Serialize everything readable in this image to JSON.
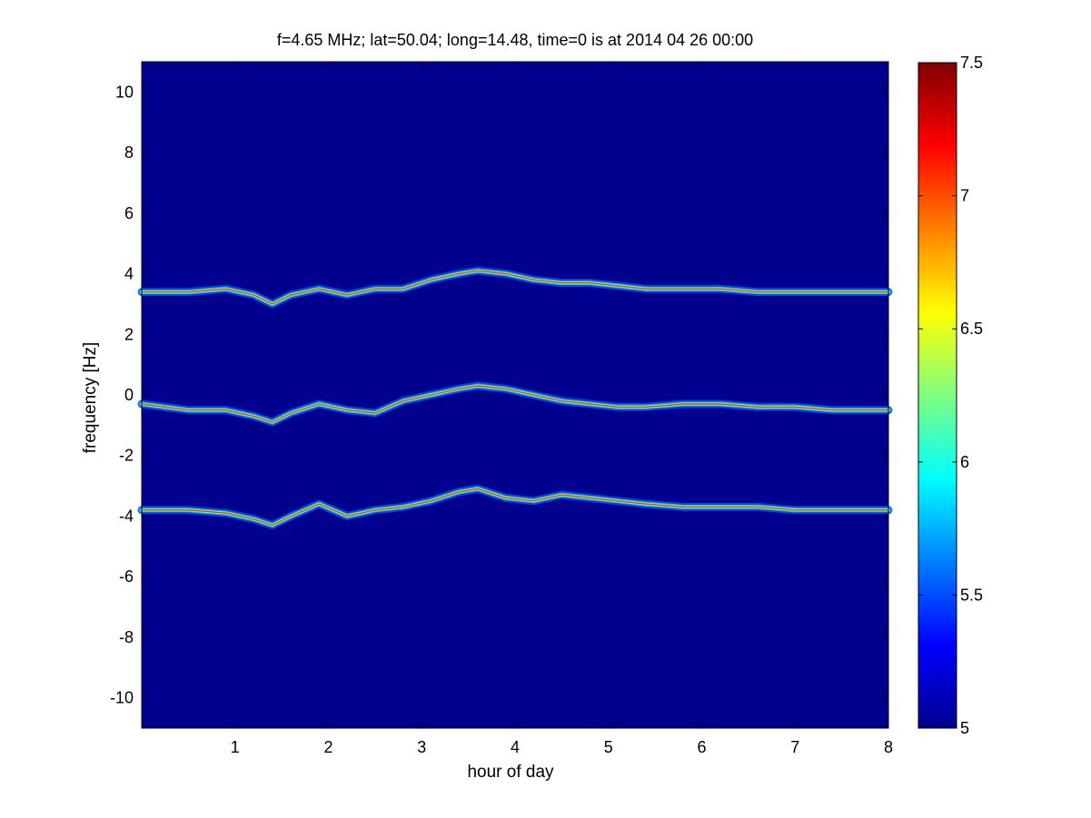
{
  "chart_data": {
    "type": "heatmap",
    "title": "f=4.65 MHz;  lat=50.04; long=14.48, time=0 is at 2014 04 26 00:00",
    "xlabel": "hour of day",
    "ylabel": "frequency [Hz]",
    "xlim": [
      0,
      8
    ],
    "ylim": [
      -11,
      11
    ],
    "x_ticks": [
      "1",
      "2",
      "3",
      "4",
      "5",
      "6",
      "7",
      "8"
    ],
    "y_ticks": [
      "10",
      "8",
      "6",
      "4",
      "2",
      "0",
      "-2",
      "-4",
      "-6",
      "-8",
      "-10"
    ],
    "colorbar": {
      "colormap": "jet",
      "clim": [
        5,
        7.5
      ],
      "ticks": [
        "7.5",
        "7",
        "6.5",
        "6",
        "5.5",
        "5"
      ]
    },
    "background_color": "#00008f",
    "series": [
      {
        "band": "upper",
        "x": [
          0.0,
          0.5,
          0.9,
          1.2,
          1.4,
          1.6,
          1.9,
          2.2,
          2.5,
          2.8,
          3.1,
          3.4,
          3.6,
          3.9,
          4.2,
          4.5,
          4.8,
          5.1,
          5.4,
          5.8,
          6.2,
          6.6,
          7.0,
          7.4,
          8.0
        ],
        "y": [
          3.4,
          3.4,
          3.5,
          3.3,
          3.0,
          3.3,
          3.5,
          3.3,
          3.5,
          3.5,
          3.8,
          4.0,
          4.1,
          4.0,
          3.8,
          3.7,
          3.7,
          3.6,
          3.5,
          3.5,
          3.5,
          3.4,
          3.4,
          3.4,
          3.4
        ]
      },
      {
        "band": "middle",
        "x": [
          0.0,
          0.5,
          0.9,
          1.2,
          1.4,
          1.6,
          1.9,
          2.2,
          2.5,
          2.8,
          3.1,
          3.4,
          3.6,
          3.9,
          4.2,
          4.5,
          4.8,
          5.1,
          5.4,
          5.8,
          6.2,
          6.6,
          7.0,
          7.4,
          8.0
        ],
        "y": [
          -0.3,
          -0.5,
          -0.5,
          -0.7,
          -0.9,
          -0.6,
          -0.3,
          -0.5,
          -0.6,
          -0.2,
          0.0,
          0.2,
          0.3,
          0.2,
          0.0,
          -0.2,
          -0.3,
          -0.4,
          -0.4,
          -0.3,
          -0.3,
          -0.4,
          -0.4,
          -0.5,
          -0.5
        ]
      },
      {
        "band": "lower",
        "x": [
          0.0,
          0.5,
          0.9,
          1.2,
          1.4,
          1.6,
          1.9,
          2.2,
          2.5,
          2.8,
          3.1,
          3.4,
          3.6,
          3.9,
          4.2,
          4.5,
          4.8,
          5.1,
          5.4,
          5.8,
          6.2,
          6.6,
          7.0,
          7.4,
          8.0
        ],
        "y": [
          -3.8,
          -3.8,
          -3.9,
          -4.1,
          -4.3,
          -4.0,
          -3.6,
          -4.0,
          -3.8,
          -3.7,
          -3.5,
          -3.2,
          -3.1,
          -3.4,
          -3.5,
          -3.3,
          -3.4,
          -3.5,
          -3.6,
          -3.7,
          -3.7,
          -3.7,
          -3.8,
          -3.8,
          -3.8
        ]
      }
    ],
    "grid": false,
    "legend": "none"
  }
}
